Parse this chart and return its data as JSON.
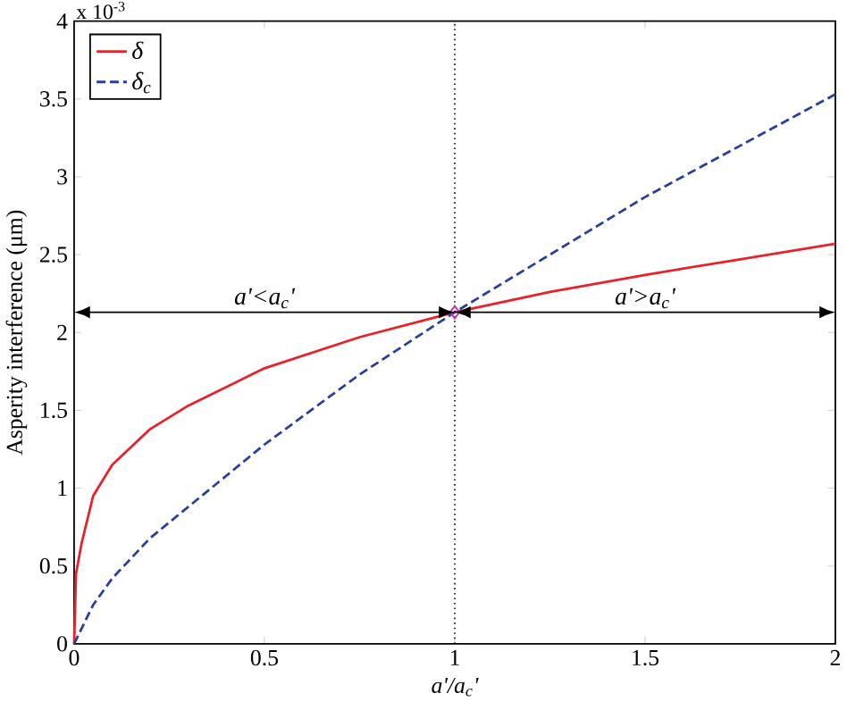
{
  "chart_data": {
    "type": "line",
    "xlabel": "a'/a$_{c}$'",
    "ylabel": "Asperity interference (μm)",
    "xlim": [
      0,
      2
    ],
    "ylim": [
      0,
      4
    ],
    "xticks": [
      0,
      0.5,
      1,
      1.5,
      2
    ],
    "yticks": [
      0,
      0.5,
      1,
      1.5,
      2,
      2.5,
      3,
      3.5,
      4
    ],
    "legend": "top left",
    "grid": false,
    "series": [
      {
        "name": "δ",
        "color": "#e8212b",
        "line_style": "solid",
        "x": [
          0,
          0.005,
          0.02,
          0.05,
          0.1,
          0.2,
          0.3,
          0.5,
          0.75,
          1,
          1.25,
          1.5,
          1.75,
          2
        ],
        "values": [
          0,
          0.45,
          0.65,
          0.95,
          1.15,
          1.38,
          1.53,
          1.77,
          1.97,
          2.13,
          2.26,
          2.37,
          2.47,
          2.57
        ]
      },
      {
        "name": "δ$_{c}$",
        "color": "#2a3f9a",
        "line_style": "dashed",
        "x": [
          0,
          0.05,
          0.1,
          0.2,
          0.3,
          0.5,
          0.75,
          1,
          1.25,
          1.5,
          1.75,
          2
        ],
        "values": [
          0,
          0.25,
          0.42,
          0.68,
          0.88,
          1.28,
          1.73,
          2.13,
          2.5,
          2.87,
          3.2,
          3.53
        ]
      },
      {
        "type": "scatter",
        "marker": "diamond",
        "color": "#c03ca0",
        "x": [
          1
        ],
        "values": [
          2.13
        ]
      }
    ],
    "ref_lines": [
      {
        "axis": "x",
        "value": 1,
        "line_style": "dotted",
        "color": "#000000"
      },
      {
        "axis": "y",
        "value": 2.13,
        "line_style": "solid",
        "color": "#000000"
      }
    ],
    "annotations": [
      "x 10$^{-3}$",
      "a'<a$_{c}$'",
      "a'>a$_{c}$'"
    ]
  }
}
